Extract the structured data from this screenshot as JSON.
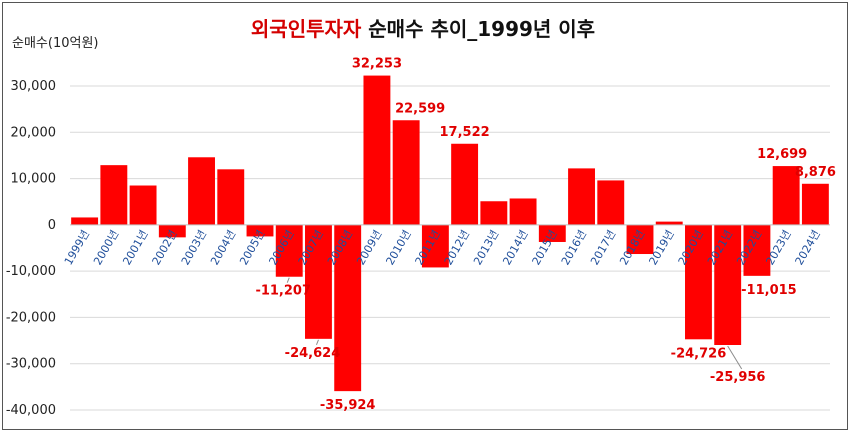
{
  "chart_data": {
    "type": "bar",
    "title_highlight": "외국인투자자",
    "title_rest": " 순매수 추이_1999년 이후",
    "ylabel": "순매수(10억원)",
    "ylim": [
      -40000,
      35000
    ],
    "yticks": [
      30000,
      20000,
      10000,
      0,
      -10000,
      -20000,
      -30000,
      -40000
    ],
    "ytick_labels": [
      "30,000",
      "20,000",
      "10,000",
      "0",
      "-10,000",
      "-20,000",
      "-30,000",
      "-40,000"
    ],
    "grid": true,
    "legend": "none",
    "bar_color": "#ff0000",
    "categories": [
      "1999년",
      "2000년",
      "2001년",
      "2002년",
      "2003년",
      "2004년",
      "2005년",
      "2006년",
      "2007년",
      "2008년",
      "2009년",
      "2010년",
      "2011년",
      "2012년",
      "2013년",
      "2014년",
      "2015년",
      "2016년",
      "2017년",
      "2018년",
      "2019년",
      "2020년",
      "2021년",
      "2022년",
      "2023년",
      "2024년"
    ],
    "values": [
      1600,
      12900,
      8500,
      -2700,
      14600,
      12000,
      -2500,
      -11207,
      -24624,
      -35924,
      32253,
      22599,
      -9200,
      17522,
      5100,
      5700,
      -3700,
      12200,
      9600,
      -6300,
      700,
      -24726,
      -25956,
      -11015,
      12699,
      8876
    ],
    "data_labels": {
      "7": "-11,207",
      "8": "-24,624",
      "9": "-35,924",
      "10": "32,253",
      "11": "22,599",
      "13": "17,522",
      "21": "-24,726",
      "22": "-25,956",
      "23": "-11,015",
      "24": "12,699",
      "25": "8,876"
    }
  }
}
